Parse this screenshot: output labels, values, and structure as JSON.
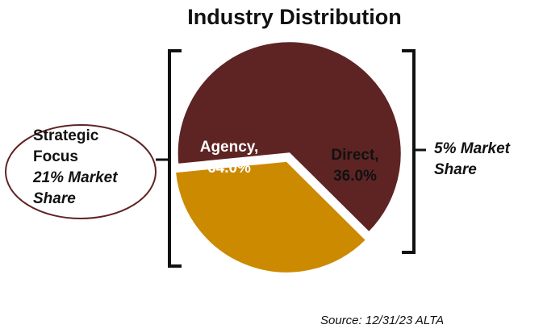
{
  "chart_data": {
    "type": "pie",
    "title": "Industry Distribution",
    "slices": [
      {
        "label": "Agency",
        "value": 64.0,
        "display": "Agency,",
        "value_text": "64.0%",
        "color": "#5E2424"
      },
      {
        "label": "Direct",
        "value": 36.0,
        "display": "Direct,",
        "value_text": "36.0%",
        "color": "#CC8A00"
      }
    ],
    "annotations": {
      "left": {
        "line1": "Strategic",
        "line2": "Focus",
        "line3": "21% Market",
        "line4": "Share"
      },
      "right": {
        "line1": "5% Market",
        "line2": "Share"
      }
    },
    "source": "Source: 12/31/23 ALTA"
  }
}
